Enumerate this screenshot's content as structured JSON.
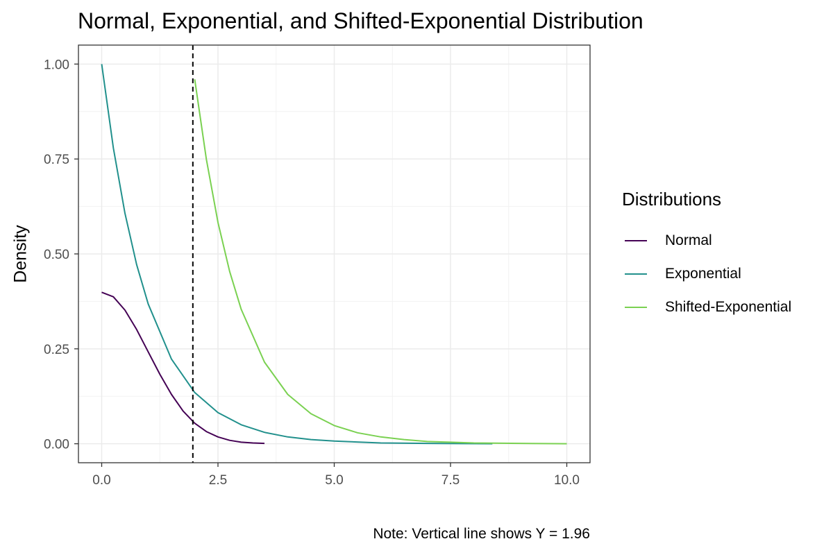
{
  "chart_data": {
    "type": "line",
    "title": "Normal, Exponential, and Shifted-Exponential Distribution",
    "xlabel": "",
    "ylabel": "Density",
    "caption": "Note: Vertical line shows Y = 1.96",
    "xlim": [
      -0.5,
      10.5
    ],
    "ylim": [
      -0.05,
      1.05
    ],
    "x_ticks": [
      0,
      2.5,
      5,
      7.5,
      10
    ],
    "x_tick_labels": [
      "0.0",
      "2.5",
      "5.0",
      "7.5",
      "10.0"
    ],
    "y_ticks": [
      0,
      0.25,
      0.5,
      0.75,
      1
    ],
    "y_tick_labels": [
      "0.00",
      "0.25",
      "0.50",
      "0.75",
      "1.00"
    ],
    "grid": true,
    "vline": {
      "x": 1.96,
      "style": "dashed",
      "color": "#000000"
    },
    "legend": {
      "title": "Distributions",
      "position": "right"
    },
    "series": [
      {
        "name": "Normal",
        "color": "#440154",
        "x": [
          0,
          0.25,
          0.5,
          0.75,
          1,
          1.25,
          1.5,
          1.75,
          2,
          2.25,
          2.5,
          2.75,
          3,
          3.25,
          3.5
        ],
        "y": [
          0.399,
          0.387,
          0.352,
          0.301,
          0.242,
          0.183,
          0.13,
          0.086,
          0.054,
          0.032,
          0.018,
          0.009,
          0.004,
          0.002,
          0.001
        ]
      },
      {
        "name": "Exponential",
        "color": "#21908C",
        "x": [
          0,
          0.25,
          0.5,
          0.75,
          1,
          1.5,
          2,
          2.5,
          3,
          3.5,
          4,
          4.5,
          5,
          6,
          7,
          8.4
        ],
        "y": [
          1.0,
          0.779,
          0.607,
          0.472,
          0.368,
          0.223,
          0.135,
          0.082,
          0.05,
          0.03,
          0.018,
          0.011,
          0.007,
          0.002,
          0.001,
          0.0
        ]
      },
      {
        "name": "Shifted-Exponential",
        "color": "#7AD151",
        "x": [
          2,
          2.25,
          2.5,
          2.75,
          3,
          3.5,
          4,
          4.5,
          5,
          5.5,
          6,
          6.5,
          7,
          7.5,
          8,
          9,
          10
        ],
        "y": [
          0.96,
          0.749,
          0.583,
          0.454,
          0.354,
          0.215,
          0.13,
          0.079,
          0.048,
          0.029,
          0.018,
          0.011,
          0.006,
          0.004,
          0.002,
          0.001,
          0.0
        ]
      }
    ]
  }
}
